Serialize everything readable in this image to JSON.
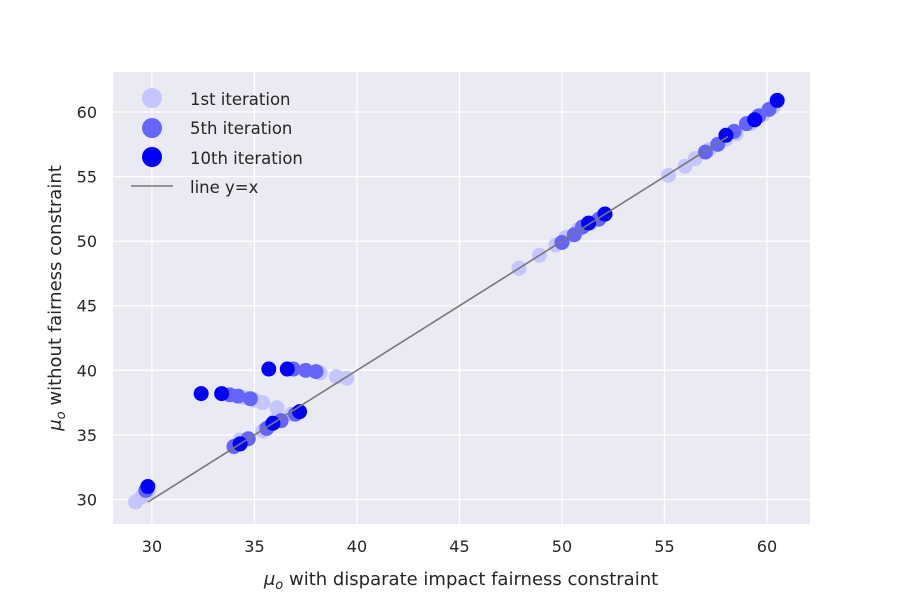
{
  "chart_data": {
    "type": "scatter",
    "title": "",
    "xlabel_var": "μ",
    "xlabel_sub": "o",
    "xlabel_rest": " with disparate impact fairness constraint",
    "ylabel_var": "μ",
    "ylabel_sub": "o",
    "ylabel_rest": " without fairness constraint",
    "xlim": [
      28.1,
      62.1
    ],
    "ylim": [
      28.1,
      63.1
    ],
    "xticks": [
      30,
      35,
      40,
      45,
      50,
      55,
      60
    ],
    "yticks": [
      30,
      35,
      40,
      45,
      50,
      55,
      60
    ],
    "grid": true,
    "legend_position": "top-left",
    "colors": {
      "background": "#eaeaf2",
      "grid": "#ffffff",
      "line": "#777777",
      "iter1": "#c5c5ff",
      "iter5": "#6464ff",
      "iter10": "#0000ff"
    },
    "series": [
      {
        "name": "1st iteration",
        "color": "#c5c5ff",
        "points": [
          [
            29.2,
            29.8
          ],
          [
            29.5,
            30.2
          ],
          [
            29.8,
            30.6
          ],
          [
            34.3,
            34.6
          ],
          [
            35.4,
            35.3
          ],
          [
            36.0,
            36.1
          ],
          [
            36.8,
            36.6
          ],
          [
            34.5,
            37.9
          ],
          [
            35.0,
            37.7
          ],
          [
            35.4,
            37.5
          ],
          [
            36.1,
            37.1
          ],
          [
            38.2,
            39.8
          ],
          [
            39.0,
            39.5
          ],
          [
            39.5,
            39.4
          ],
          [
            47.9,
            47.9
          ],
          [
            48.9,
            48.9
          ],
          [
            49.7,
            49.7
          ],
          [
            50.2,
            50.3
          ],
          [
            50.8,
            50.9
          ],
          [
            51.4,
            51.4
          ],
          [
            52.0,
            52.0
          ],
          [
            55.2,
            55.1
          ],
          [
            56.0,
            55.8
          ],
          [
            56.5,
            56.4
          ],
          [
            57.2,
            57.1
          ],
          [
            58.0,
            57.9
          ],
          [
            58.5,
            58.3
          ],
          [
            59.2,
            59.1
          ],
          [
            59.8,
            59.8
          ],
          [
            60.3,
            60.4
          ]
        ]
      },
      {
        "name": "5th iteration",
        "color": "#6464ff",
        "points": [
          [
            29.7,
            30.7
          ],
          [
            34.0,
            34.1
          ],
          [
            34.7,
            34.7
          ],
          [
            35.6,
            35.5
          ],
          [
            36.3,
            36.1
          ],
          [
            37.0,
            36.6
          ],
          [
            34.2,
            38.0
          ],
          [
            34.8,
            37.8
          ],
          [
            33.8,
            38.1
          ],
          [
            36.9,
            40.1
          ],
          [
            37.5,
            40.0
          ],
          [
            38.0,
            39.9
          ],
          [
            50.0,
            49.9
          ],
          [
            50.6,
            50.5
          ],
          [
            51.0,
            51.1
          ],
          [
            51.8,
            51.7
          ],
          [
            57.0,
            56.9
          ],
          [
            57.6,
            57.5
          ],
          [
            58.4,
            58.5
          ],
          [
            59.0,
            59.1
          ],
          [
            59.6,
            59.7
          ],
          [
            60.1,
            60.2
          ]
        ]
      },
      {
        "name": "10th iteration",
        "color": "#0000ff",
        "points": [
          [
            29.8,
            31.0
          ],
          [
            34.3,
            34.3
          ],
          [
            35.9,
            35.9
          ],
          [
            37.2,
            36.8
          ],
          [
            32.4,
            38.2
          ],
          [
            33.4,
            38.2
          ],
          [
            35.7,
            40.1
          ],
          [
            36.6,
            40.1
          ],
          [
            51.3,
            51.4
          ],
          [
            52.1,
            52.1
          ],
          [
            58.0,
            58.2
          ],
          [
            59.4,
            59.4
          ],
          [
            60.5,
            60.9
          ]
        ]
      }
    ],
    "reference_line": {
      "name": "line y=x",
      "x": [
        29.8,
        58.1
      ],
      "y": [
        29.8,
        58.1
      ]
    }
  }
}
